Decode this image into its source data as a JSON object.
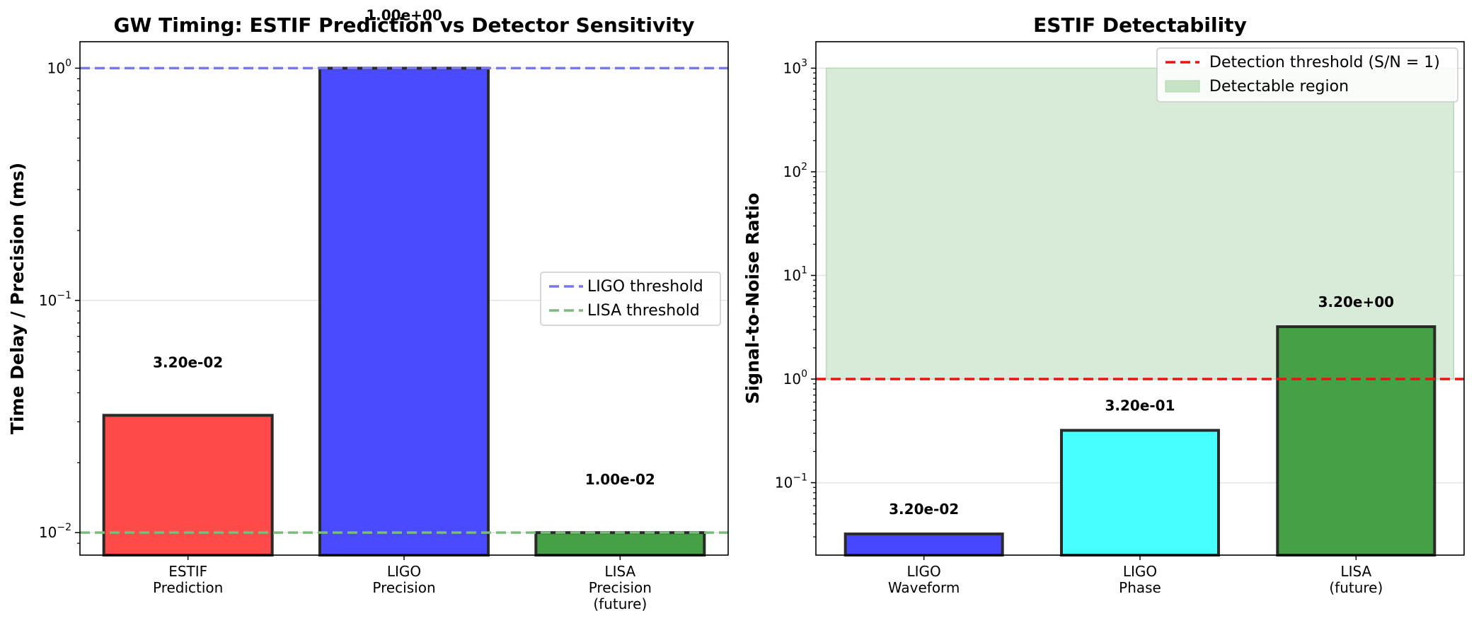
{
  "chart_data": [
    {
      "type": "bar",
      "title": "GW Timing: ESTIF Prediction vs Detector Sensitivity",
      "xlabel": "",
      "ylabel": "Time Delay / Precision (ms)",
      "yscale": "log",
      "ylim": [
        0.008,
        1.3
      ],
      "y_ticks": [
        {
          "value": 0.01,
          "base": "10",
          "exp": "−2"
        },
        {
          "value": 0.1,
          "base": "10",
          "exp": "−1"
        },
        {
          "value": 1,
          "base": "10",
          "exp": "0"
        }
      ],
      "grid": true,
      "categories": [
        [
          "ESTIF",
          "Prediction"
        ],
        [
          "LIGO",
          "Precision"
        ],
        [
          "LISA",
          "Precision",
          "(future)"
        ]
      ],
      "values": [
        0.032,
        1.0,
        0.01
      ],
      "bar_colors": [
        "#ff4a4a",
        "#4a4aff",
        "#46a046"
      ],
      "data_labels": [
        "3.20e-02",
        "1.00e+00",
        "1.00e-02"
      ],
      "reference_lines": [
        {
          "name": "LIGO threshold",
          "value": 1.0,
          "color": "#7777ee",
          "style": "dashed"
        },
        {
          "name": "LISA threshold",
          "value": 0.01,
          "color": "#7bbb7b",
          "style": "dashed"
        }
      ],
      "legend": {
        "placement": "center-right",
        "entries": [
          {
            "label": "LIGO threshold",
            "color": "#7777ee",
            "kind": "dashed-line"
          },
          {
            "label": "LISA threshold",
            "color": "#7bbb7b",
            "kind": "dashed-line"
          }
        ]
      }
    },
    {
      "type": "bar",
      "title": "ESTIF Detectability",
      "xlabel": "",
      "ylabel": "Signal-to-Noise Ratio",
      "yscale": "log",
      "ylim": [
        0.02,
        1800
      ],
      "y_ticks": [
        {
          "value": 0.1,
          "base": "10",
          "exp": "−1"
        },
        {
          "value": 1,
          "base": "10",
          "exp": "0"
        },
        {
          "value": 10,
          "base": "10",
          "exp": "1"
        },
        {
          "value": 100,
          "base": "10",
          "exp": "2"
        },
        {
          "value": 1000,
          "base": "10",
          "exp": "3"
        }
      ],
      "grid": true,
      "categories": [
        [
          "LIGO",
          "Waveform"
        ],
        [
          "LIGO",
          "Phase"
        ],
        [
          "LISA",
          "(future)"
        ]
      ],
      "values": [
        0.032,
        0.32,
        3.2
      ],
      "bar_colors": [
        "#4747ff",
        "#47ffff",
        "#46a046"
      ],
      "data_labels": [
        "3.20e-02",
        "3.20e-01",
        "3.20e+00"
      ],
      "reference_lines": [
        {
          "name": "Detection threshold (S/N = 1)",
          "value": 1.0,
          "color": "#ee1111",
          "style": "dashed"
        }
      ],
      "shaded_region": {
        "name": "Detectable region",
        "y_from": 1,
        "y_to": 1000,
        "color": "#d8ebd8"
      },
      "legend": {
        "placement": "top-right",
        "entries": [
          {
            "label": "Detection threshold (S/N = 1)",
            "color": "#ee1111",
            "kind": "dashed-line"
          },
          {
            "label": "Detectable region",
            "color": "#c6e3c6",
            "kind": "patch"
          }
        ]
      }
    }
  ]
}
